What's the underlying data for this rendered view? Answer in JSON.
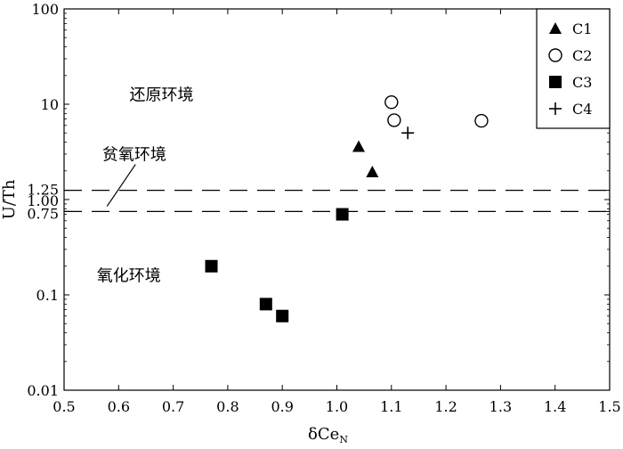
{
  "chart_data": {
    "type": "scatter",
    "title": "",
    "xlabel": "δCe",
    "xlabel_sub": "N",
    "ylabel": "U/Th",
    "xlim": [
      0.5,
      1.5
    ],
    "ylim": [
      0.01,
      100
    ],
    "y_scale": "log",
    "grid": false,
    "legend_position": "top-right",
    "x_ticks": [
      "0.5",
      "0.6",
      "0.7",
      "0.8",
      "0.9",
      "1.0",
      "1.1",
      "1.2",
      "1.3",
      "1.4",
      "1.5"
    ],
    "y_ticks": [
      {
        "value": 100,
        "label": "100"
      },
      {
        "value": 10,
        "label": "10"
      },
      {
        "value": 1.25,
        "label": "1.25"
      },
      {
        "value": 1.0,
        "label": "1.00"
      },
      {
        "value": 0.75,
        "label": "0.75"
      },
      {
        "value": 0.1,
        "label": "0.1"
      },
      {
        "value": 0.01,
        "label": "0.01"
      }
    ],
    "reference_lines": [
      {
        "y": 1.25,
        "style": "dashed"
      },
      {
        "y": 0.75,
        "style": "dashed"
      }
    ],
    "series": [
      {
        "name": "C1",
        "marker": "triangle-filled",
        "points": [
          {
            "x": 1.04,
            "y": 3.6
          },
          {
            "x": 1.065,
            "y": 1.95
          }
        ]
      },
      {
        "name": "C2",
        "marker": "circle-open",
        "points": [
          {
            "x": 1.1,
            "y": 10.5
          },
          {
            "x": 1.105,
            "y": 6.8
          },
          {
            "x": 1.265,
            "y": 6.7
          }
        ]
      },
      {
        "name": "C3",
        "marker": "square-filled",
        "points": [
          {
            "x": 1.01,
            "y": 0.7
          },
          {
            "x": 0.77,
            "y": 0.2
          },
          {
            "x": 0.87,
            "y": 0.08
          },
          {
            "x": 0.9,
            "y": 0.06
          }
        ]
      },
      {
        "name": "C4",
        "marker": "plus",
        "points": [
          {
            "x": 1.13,
            "y": 5.0
          }
        ]
      }
    ],
    "annotations": [
      {
        "text": "还原环境",
        "x": 0.62,
        "y": 11
      },
      {
        "text": "贫氧环境",
        "x": 0.57,
        "y": 2.6,
        "leader_to": {
          "x": 0.595,
          "y": 1.1
        }
      },
      {
        "text": "氧化环境",
        "x": 0.56,
        "y": 0.14
      }
    ]
  }
}
